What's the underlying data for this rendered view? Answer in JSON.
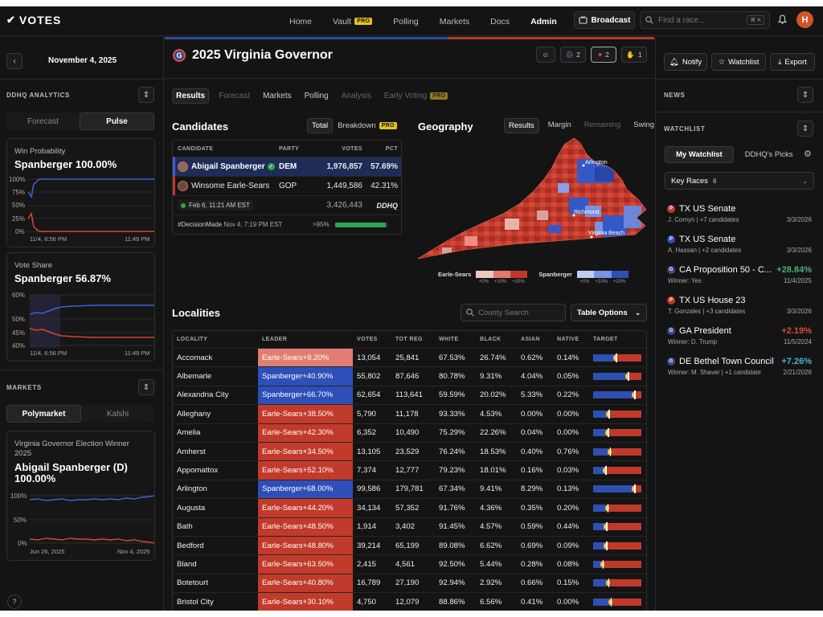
{
  "app": {
    "logo": "VOTES"
  },
  "nav": {
    "items": [
      {
        "label": "Home"
      },
      {
        "label": "Vault",
        "badge": "PRO"
      },
      {
        "label": "Polling"
      },
      {
        "label": "Markets"
      },
      {
        "label": "Docs"
      },
      {
        "label": "Admin",
        "active": true
      }
    ],
    "broadcast": "Broadcast",
    "search_placeholder": "Find a race...",
    "search_kbd": "⌘ K",
    "avatar": "H"
  },
  "left": {
    "date": "November 4, 2025",
    "analytics_title": "DDHQ ANALYTICS",
    "analytics_tabs": [
      "Forecast",
      "Pulse"
    ],
    "win_prob": {
      "label": "Win Probability",
      "value": "Spanberger 100.00%",
      "y_ticks": [
        "100%",
        "75%",
        "50%",
        "25%",
        "0%"
      ],
      "x_ticks": [
        "11/4, 6:56 PM",
        "11:49 PM"
      ]
    },
    "vote_share": {
      "label": "Vote Share",
      "value": "Spanberger 56.87%",
      "y_ticks": [
        "60%",
        "50%",
        "45%",
        "40%"
      ],
      "x_ticks": [
        "11/4, 6:56 PM",
        "11:49 PM"
      ]
    },
    "markets_title": "MARKETS",
    "market_tabs": [
      "Polymarket",
      "Kalshi"
    ],
    "market_card": {
      "label": "Virginia Governor Election Winner 2025",
      "value": "Abigail Spanberger (D) 100.00%",
      "y_ticks": [
        "100%",
        "50%",
        "0%"
      ],
      "x_ticks": [
        "Jun 26, 2025",
        "Nov 4, 2025"
      ]
    },
    "help": "?"
  },
  "race": {
    "title": "2025 Virginia Governor",
    "badge": "G",
    "reactions": [
      {
        "icon": "smile-plus",
        "count": ""
      },
      {
        "icon": "angry",
        "count": "2"
      },
      {
        "icon": "heart",
        "count": "2"
      },
      {
        "icon": "pray",
        "count": "1"
      }
    ],
    "tabs": [
      "Results",
      "Forecast",
      "Markets",
      "Polling",
      "Analysis",
      "Early Voting"
    ],
    "tab_badge": "PRO"
  },
  "candidates": {
    "title": "Candidates",
    "toggle": [
      "Total",
      "Breakdown"
    ],
    "toggle_badge": "PRO",
    "columns": [
      "CANDIDATE",
      "PARTY",
      "VOTES",
      "PCT"
    ],
    "rows": [
      {
        "name": "Abigail Spanberger",
        "party": "DEM",
        "votes": "1,976,857",
        "pct": "57.69%",
        "winner": true
      },
      {
        "name": "Winsome Earle-Sears",
        "party": "GOP",
        "votes": "1,449,586",
        "pct": "42.31%",
        "winner": false
      }
    ],
    "updated": "Feb 6, 11:21 AM EST",
    "total_votes": "3,426,443",
    "source": "DDHQ",
    "decision": "#DecisionMade",
    "decision_time": "Nov 4, 7:19 PM EST",
    "reporting": ">95%",
    "reporting_fraction": 0.95
  },
  "geography": {
    "title": "Geography",
    "tabs": [
      "Results",
      "Margin",
      "Remaining",
      "Swing"
    ],
    "cities": [
      "Arlington",
      "Richmond",
      "Virginia Beach"
    ],
    "legend": {
      "rep": "Earle-Sears",
      "dem": "Spanberger",
      "ticks": [
        "+0%",
        "+10%",
        "+20%"
      ]
    }
  },
  "localities": {
    "title": "Localities",
    "search_placeholder": "County Search",
    "options_label": "Table Options",
    "columns": [
      "LOCALITY",
      "LEADER",
      "VOTES",
      "TOT REG",
      "WHITE",
      "BLACK",
      "ASIAN",
      "NATIVE",
      "TARGET"
    ],
    "rows": [
      {
        "name": "Accomack",
        "leader": "Earle-Sears+9.20%",
        "party": "R",
        "margin": 9.2,
        "votes": "13,054",
        "reg": "25,841",
        "white": "67.53%",
        "black": "26.74%",
        "asian": "0.62%",
        "native": "0.14%"
      },
      {
        "name": "Albemarle",
        "leader": "Spanberger+40.90%",
        "party": "D",
        "margin": 40.9,
        "votes": "55,802",
        "reg": "87,646",
        "white": "80.78%",
        "black": "9.31%",
        "asian": "4.04%",
        "native": "0.05%"
      },
      {
        "name": "Alexandria City",
        "leader": "Spanberger+66.70%",
        "party": "D",
        "margin": 66.7,
        "votes": "62,654",
        "reg": "113,641",
        "white": "59.59%",
        "black": "20.02%",
        "asian": "5.33%",
        "native": "0.22%"
      },
      {
        "name": "Alleghany",
        "leader": "Earle-Sears+38.50%",
        "party": "R",
        "margin": 38.5,
        "votes": "5,790",
        "reg": "11,178",
        "white": "93.33%",
        "black": "4.53%",
        "asian": "0.00%",
        "native": "0.00%"
      },
      {
        "name": "Amelia",
        "leader": "Earle-Sears+42.30%",
        "party": "R",
        "margin": 42.3,
        "votes": "6,352",
        "reg": "10,490",
        "white": "75.29%",
        "black": "22.26%",
        "asian": "0.04%",
        "native": "0.00%"
      },
      {
        "name": "Amherst",
        "leader": "Earle-Sears+34.50%",
        "party": "R",
        "margin": 34.5,
        "votes": "13,105",
        "reg": "23,529",
        "white": "76.24%",
        "black": "18.53%",
        "asian": "0.40%",
        "native": "0.76%"
      },
      {
        "name": "Appomattox",
        "leader": "Earle-Sears+52.10%",
        "party": "R",
        "margin": 52.1,
        "votes": "7,374",
        "reg": "12,777",
        "white": "79.23%",
        "black": "18.01%",
        "asian": "0.16%",
        "native": "0.03%"
      },
      {
        "name": "Arlington",
        "leader": "Spanberger+68.00%",
        "party": "D",
        "margin": 68.0,
        "votes": "99,586",
        "reg": "179,781",
        "white": "67.34%",
        "black": "9.41%",
        "asian": "8.29%",
        "native": "0.13%"
      },
      {
        "name": "Augusta",
        "leader": "Earle-Sears+44.20%",
        "party": "R",
        "margin": 44.2,
        "votes": "34,134",
        "reg": "57,352",
        "white": "91.76%",
        "black": "4.36%",
        "asian": "0.35%",
        "native": "0.20%"
      },
      {
        "name": "Bath",
        "leader": "Earle-Sears+48.50%",
        "party": "R",
        "margin": 48.5,
        "votes": "1,914",
        "reg": "3,402",
        "white": "91.45%",
        "black": "4.57%",
        "asian": "0.59%",
        "native": "0.44%"
      },
      {
        "name": "Bedford",
        "leader": "Earle-Sears+48.80%",
        "party": "R",
        "margin": 48.8,
        "votes": "39,214",
        "reg": "65,199",
        "white": "89.08%",
        "black": "6.62%",
        "asian": "0.69%",
        "native": "0.09%"
      },
      {
        "name": "Bland",
        "leader": "Earle-Sears+63.50%",
        "party": "R",
        "margin": 63.5,
        "votes": "2,415",
        "reg": "4,561",
        "white": "92.50%",
        "black": "5.44%",
        "asian": "0.28%",
        "native": "0.08%"
      },
      {
        "name": "Botetourt",
        "leader": "Earle-Sears+40.80%",
        "party": "R",
        "margin": 40.8,
        "votes": "16,789",
        "reg": "27,190",
        "white": "92.94%",
        "black": "2.92%",
        "asian": "0.66%",
        "native": "0.15%"
      },
      {
        "name": "Bristol City",
        "leader": "Earle-Sears+30.10%",
        "party": "R",
        "margin": 30.1,
        "votes": "4,750",
        "reg": "12,079",
        "white": "88.86%",
        "black": "6.56%",
        "asian": "0.41%",
        "native": "0.00%"
      }
    ]
  },
  "right": {
    "buttons": [
      "Notify",
      "Watchlist",
      "Export"
    ],
    "news_title": "NEWS",
    "watchlist_title": "WATCHLIST",
    "watch_tabs": [
      "My Watchlist",
      "DDHQ's Picks"
    ],
    "key_races_label": "Key Races",
    "key_races_count": "6",
    "items": [
      {
        "badge": "P",
        "badge_color": "#c0392b",
        "title": "TX US Senate",
        "sub": "J. Cornyn | +7 candidates",
        "pct": "",
        "pct_color": "#ffffff",
        "date": "3/3/2026"
      },
      {
        "badge": "P",
        "badge_color": "#2f4fb2",
        "title": "TX US Senate",
        "sub": "A. Hassan | +2 candidates",
        "pct": "",
        "pct_color": "#ffffff",
        "date": "3/3/2026"
      },
      {
        "badge": "G",
        "badge_color": "#3a4a8a",
        "title": "CA Proposition 50 - C...",
        "sub": "Winner: Yes",
        "pct": "+28.84%",
        "pct_color": "#4caf7a",
        "date": "11/4/2025"
      },
      {
        "badge": "P",
        "badge_color": "#c0392b",
        "title": "TX US House 23",
        "sub": "T. Gonzales | +3 candidates",
        "pct": "",
        "pct_color": "#ffffff",
        "date": "3/3/2026"
      },
      {
        "badge": "G",
        "badge_color": "#3a4a8a",
        "title": "GA President",
        "sub": "Winner: D. Trump",
        "pct": "+2.19%",
        "pct_color": "#e0473a",
        "date": "11/5/2024"
      },
      {
        "badge": "G",
        "badge_color": "#3a4a8a",
        "title": "DE Bethel Town Council",
        "sub": "Winner: M. Shaver | +1 candidate",
        "pct": "+7.26%",
        "pct_color": "#4fb0d8",
        "date": "2/21/2026"
      }
    ]
  }
}
